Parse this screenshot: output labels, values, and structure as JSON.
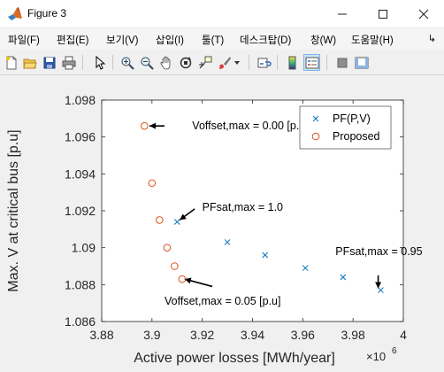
{
  "window": {
    "title": "Figure 3",
    "icon": "matlab-icon",
    "controls": [
      "minimize-icon",
      "maximize-icon",
      "close-icon"
    ]
  },
  "menu": {
    "items": [
      "파일(F)",
      "편집(E)",
      "보기(V)",
      "삽입(I)",
      "툴(T)",
      "데스크탑(D)",
      "창(W)",
      "도움말(H)"
    ],
    "overflow_icon": "chevron-right-icon"
  },
  "toolbar": {
    "icons": [
      "new-figure-icon",
      "open-file-icon",
      "save-icon",
      "print-icon",
      "edit-plot-arrow-icon",
      "zoom-in-icon",
      "zoom-out-icon",
      "pan-hand-icon",
      "rotate-3d-icon",
      "data-cursor-icon",
      "brush-icon",
      "brush-dropdown-icon",
      "link-plot-icon",
      "colorbar-icon",
      "legend-icon",
      "hide-plot-tools-icon",
      "show-plot-tools-icon"
    ]
  },
  "chart_data": {
    "type": "scatter",
    "xlabel": "Active power losses [MWh/year]",
    "ylabel": "Max. V at critical bus [p.u]",
    "x_multiplier": "×10",
    "x_exponent": "6",
    "xlim": [
      3.88,
      4.0
    ],
    "ylim": [
      1.086,
      1.098
    ],
    "xticks": [
      3.88,
      3.9,
      3.92,
      3.94,
      3.96,
      3.98,
      4.0
    ],
    "xtick_labels": [
      "3.88",
      "3.9",
      "3.92",
      "3.94",
      "3.96",
      "3.98",
      "4"
    ],
    "yticks": [
      1.086,
      1.088,
      1.09,
      1.092,
      1.094,
      1.096,
      1.098
    ],
    "ytick_labels": [
      "1.086",
      "1.088",
      "1.09",
      "1.092",
      "1.094",
      "1.096",
      "1.098"
    ],
    "grid": false,
    "legend_position": "top-right",
    "series": [
      {
        "name": "PF(P,V)",
        "marker": "x",
        "color": "#0072bd",
        "points": [
          [
            3.91,
            1.0914
          ],
          [
            3.93,
            1.0903
          ],
          [
            3.945,
            1.0896
          ],
          [
            3.961,
            1.0889
          ],
          [
            3.976,
            1.0884
          ],
          [
            3.991,
            1.0877
          ]
        ]
      },
      {
        "name": "Proposed",
        "marker": "o",
        "color": "#d95319",
        "points": [
          [
            3.897,
            1.0966
          ],
          [
            3.9,
            1.0935
          ],
          [
            3.903,
            1.0915
          ],
          [
            3.906,
            1.09
          ],
          [
            3.909,
            1.089
          ],
          [
            3.912,
            1.0883
          ]
        ]
      }
    ],
    "annotations": [
      {
        "text": "Voffset,max = 0.00 [p.u]",
        "x": 3.916,
        "y": 1.0966,
        "arrow_from": [
          3.905,
          1.0966
        ],
        "arrow_to": [
          3.899,
          1.0966
        ]
      },
      {
        "text": "PFsat,max = 1.0",
        "x": 3.92,
        "y": 1.0922,
        "arrow_from": [
          3.917,
          1.0921
        ],
        "arrow_to": [
          3.911,
          1.0915
        ]
      },
      {
        "text": "PFsat,max = 0.95",
        "x": 3.973,
        "y": 1.0898,
        "arrow_from": [
          3.99,
          1.0885
        ],
        "arrow_to": [
          3.99,
          1.0878
        ]
      },
      {
        "text": "Voffset,max = 0.05 [p.u]",
        "x": 3.905,
        "y": 1.0871,
        "arrow_from": [
          3.924,
          1.0879
        ],
        "arrow_to": [
          3.913,
          1.0883
        ]
      }
    ]
  }
}
